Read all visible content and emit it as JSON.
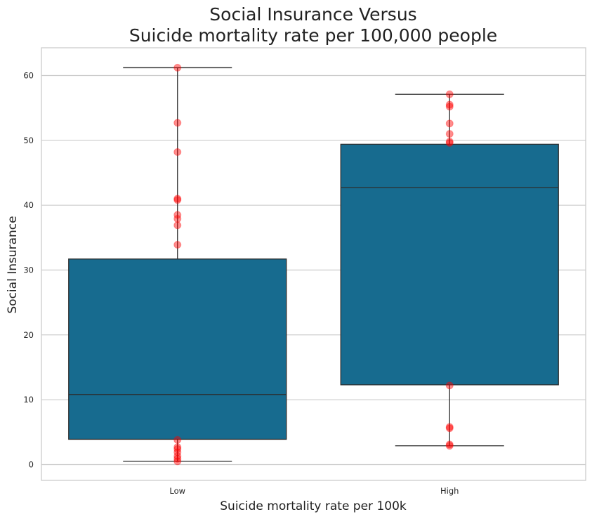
{
  "chart_data": {
    "type": "box",
    "title_lines": [
      "Social Insurance Versus",
      "Suicide mortality rate per 100,000 people"
    ],
    "xlabel": "Suicide mortality rate per 100k",
    "ylabel": "Social Insurance",
    "categories": [
      "Low",
      "High"
    ],
    "ylim": [
      -2.5,
      64.2
    ],
    "yticks": [
      0,
      10,
      20,
      30,
      40,
      50,
      60
    ],
    "grid": "horizontal",
    "boxes": [
      {
        "category": "Low",
        "whisker_low": 0.5,
        "q1": 3.9,
        "median": 10.8,
        "q3": 31.7,
        "whisker_high": 61.2
      },
      {
        "category": "High",
        "whisker_low": 2.9,
        "q1": 12.3,
        "median": 42.7,
        "q3": 49.4,
        "whisker_high": 57.1
      }
    ],
    "points": [
      {
        "category": "Low",
        "values": [
          61.2,
          52.7,
          48.2,
          41.0,
          40.8,
          38.5,
          37.9,
          36.9,
          33.9,
          3.8,
          2.7,
          2.4,
          1.9,
          1.3,
          0.9,
          0.5
        ]
      },
      {
        "category": "High",
        "values": [
          57.1,
          55.5,
          55.2,
          52.6,
          51.0,
          49.8,
          49.6,
          12.2,
          5.8,
          5.6,
          3.1,
          2.9
        ]
      }
    ],
    "colors": {
      "box_fill": "#176b8f",
      "box_edge": "#2d2d2d",
      "points": "#ff0000",
      "grid": "#cccccc",
      "frame": "#cccccc"
    }
  }
}
